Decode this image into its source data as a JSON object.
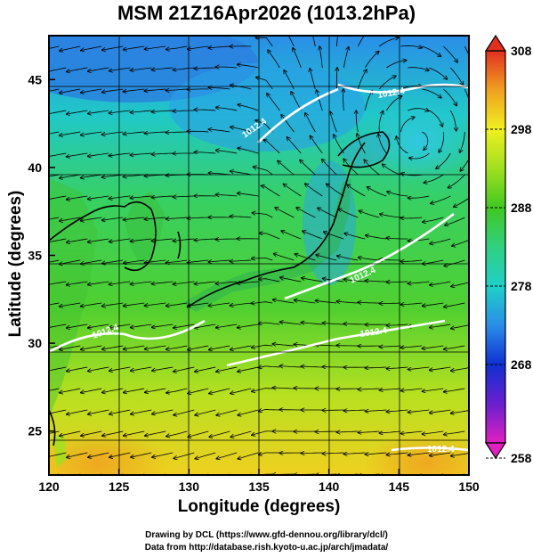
{
  "title": "MSM 21Z16Apr2026 (1013.2hPa)",
  "axes": {
    "xlabel": "Longitude (degrees)",
    "ylabel": "Latitude  (degrees)",
    "xlim": [
      120,
      150
    ],
    "ylim": [
      22.5,
      47.5
    ],
    "xticks": [
      "120",
      "125",
      "130",
      "135",
      "140",
      "145",
      "150"
    ],
    "yticks": [
      "25",
      "30",
      "35",
      "40",
      "45"
    ]
  },
  "colorbar": {
    "min": 258,
    "max": 308,
    "labels": [
      "308",
      "298",
      "288",
      "278",
      "268",
      "258"
    ],
    "colors": {
      "258": "#e020c0",
      "263": "#6a1fd0",
      "268": "#1030d0",
      "273": "#2a8ee8",
      "278": "#20d0c8",
      "283": "#30d080",
      "288": "#40c820",
      "293": "#a0e020",
      "298": "#f0f020",
      "303": "#f0a020",
      "308": "#e03020"
    }
  },
  "contours": {
    "color": "#ffffff",
    "labels": [
      "1012.4",
      "1012.4",
      "1012.4",
      "1012.4",
      "1012.4",
      "1012.4"
    ]
  },
  "credits": {
    "line1": "Drawing by DCL (https://www.gfd-dennou.org/library/dcl/)",
    "line2": "Data from http://database.rish.kyoto-u.ac.jp/arch/jmadata/"
  }
}
